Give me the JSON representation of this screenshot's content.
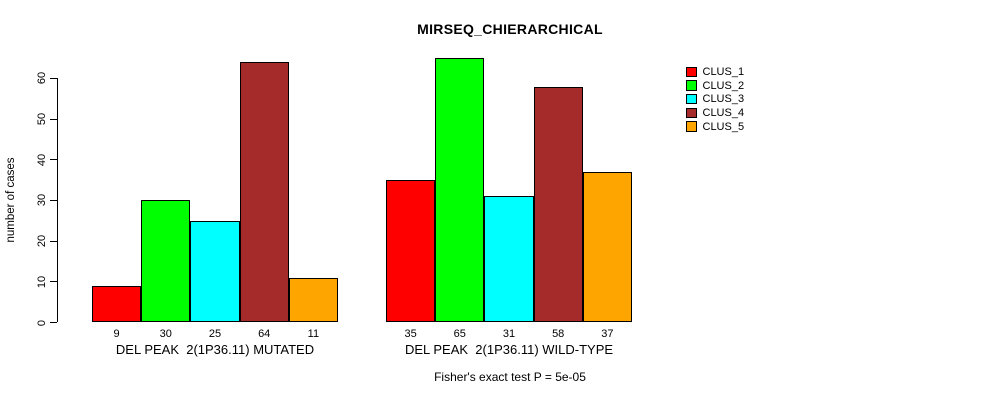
{
  "title": "MIRSEQ_CHIERARCHICAL",
  "chart_data": {
    "type": "bar",
    "title": "MIRSEQ_CHIERARCHICAL",
    "ylabel": "number of cases",
    "xlabel": "",
    "ylim": [
      0,
      65
    ],
    "yticks": [
      0,
      10,
      20,
      30,
      40,
      50,
      60
    ],
    "grid": false,
    "legend_position": "top-right",
    "legend": [
      {
        "label": "CLUS_1",
        "color": "#FF0000"
      },
      {
        "label": "CLUS_2",
        "color": "#00FF00"
      },
      {
        "label": "CLUS_3",
        "color": "#00FFFF"
      },
      {
        "label": "CLUS_4",
        "color": "#A52A2A"
      },
      {
        "label": "CLUS_5",
        "color": "#FFA500"
      }
    ],
    "series_colors": [
      "#FF0000",
      "#00FF00",
      "#00FFFF",
      "#A52A2A",
      "#FFA500"
    ],
    "groups": [
      {
        "label": "DEL PEAK  2(1P36.11) MUTATED",
        "values": [
          9,
          30,
          25,
          64,
          11
        ]
      },
      {
        "label": "DEL PEAK  2(1P36.11) WILD-TYPE",
        "values": [
          35,
          65,
          31,
          58,
          37
        ]
      }
    ],
    "annotation": "Fisher's exact test P = 5e-05"
  }
}
